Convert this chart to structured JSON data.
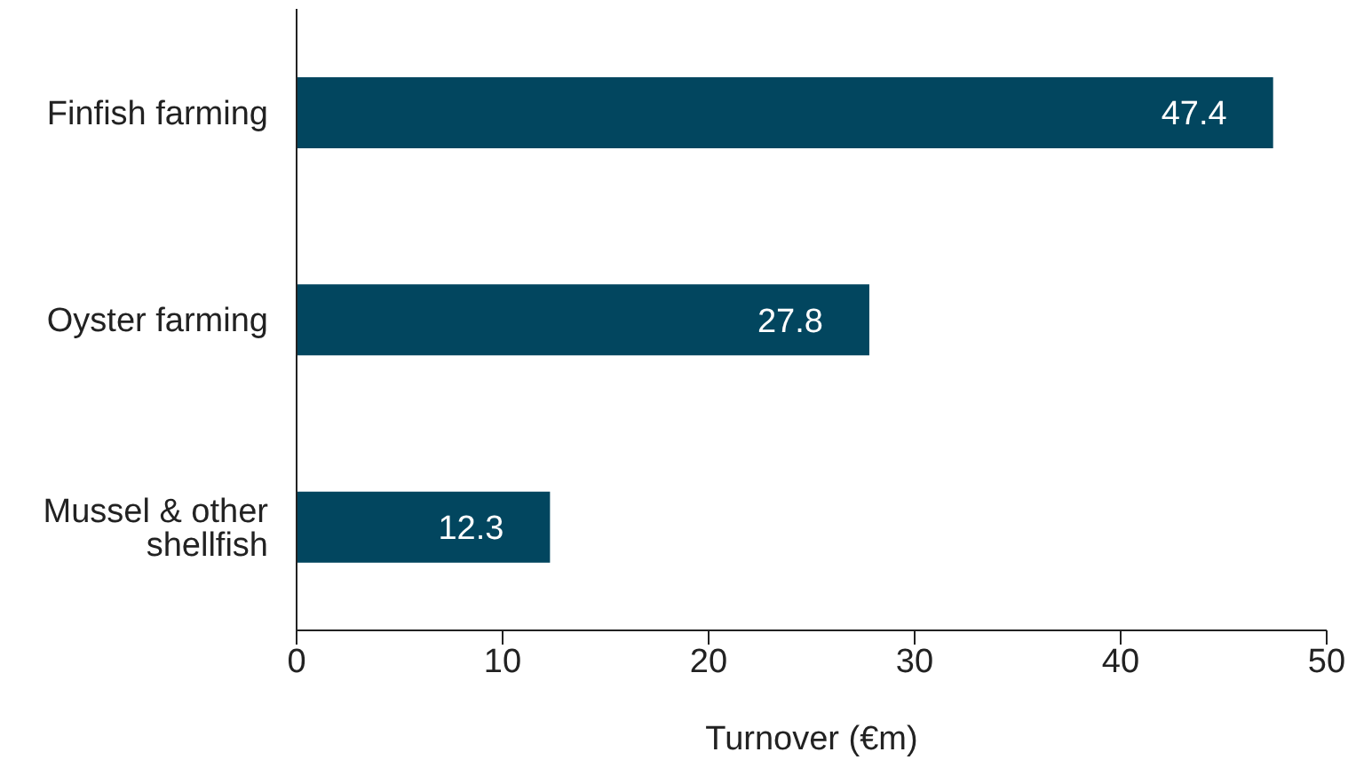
{
  "chart_data": {
    "type": "bar",
    "orientation": "horizontal",
    "categories": [
      "Finfish farming",
      "Oyster farming",
      "Mussel & other shellfish"
    ],
    "values": [
      47.4,
      27.8,
      12.3
    ],
    "color": "#02465f",
    "xlabel": "Turnover (€m)",
    "xlim": [
      0,
      50
    ],
    "xticks": [
      0,
      10,
      20,
      30,
      40,
      50
    ],
    "grid": false,
    "data_labels": true,
    "legend": false
  }
}
